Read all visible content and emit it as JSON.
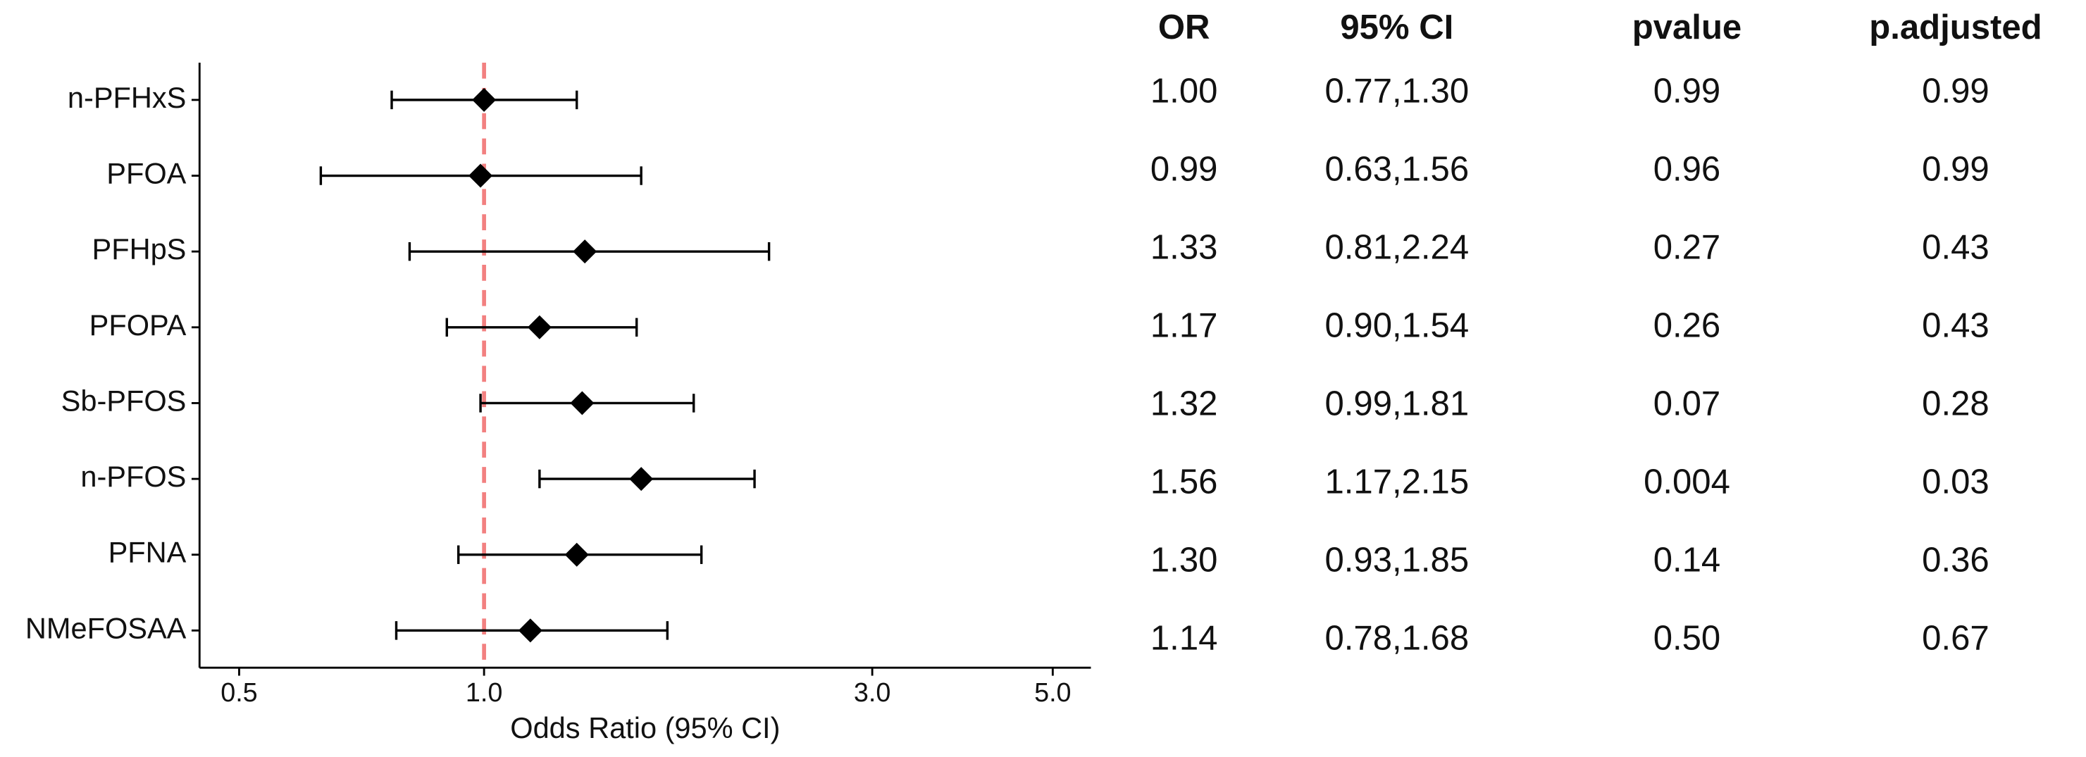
{
  "chart_data": {
    "type": "forest",
    "categories": [
      "n-PFHxS",
      "PFOA",
      "PFHpS",
      "PFOPA",
      "Sb-PFOS",
      "n-PFOS",
      "PFNA",
      "NMeFOSAA"
    ],
    "values": [
      1.0,
      0.99,
      1.33,
      1.17,
      1.32,
      1.56,
      1.3,
      1.14
    ],
    "lower": [
      0.77,
      0.63,
      0.81,
      0.9,
      0.99,
      1.17,
      0.93,
      0.78
    ],
    "upper": [
      1.3,
      1.56,
      2.24,
      1.54,
      1.81,
      2.15,
      1.85,
      1.68
    ],
    "color": "#000000",
    "x_label": "Odds Ratio (95% CI)",
    "xscale": "log",
    "xlim": [
      0.447,
      5.57
    ],
    "xticks": [
      0.5,
      {
        "value": 1,
        "label": "1.0"
      },
      {
        "value": 3,
        "label": "3.0"
      },
      {
        "value": 5,
        "label": "5.0"
      }
    ],
    "reference_line": 1,
    "reference_color": "#f28080"
  },
  "table": {
    "columns": [
      "OR",
      "95% CI",
      "pvalue",
      "p.adjusted"
    ],
    "rows": [
      [
        "1.00",
        "0.77,1.30",
        "0.99",
        "0.99"
      ],
      [
        "0.99",
        "0.63,1.56",
        "0.96",
        "0.99"
      ],
      [
        "1.33",
        "0.81,2.24",
        "0.27",
        "0.43"
      ],
      [
        "1.17",
        "0.90,1.54",
        "0.26",
        "0.43"
      ],
      [
        "1.32",
        "0.99,1.81",
        "0.07",
        "0.28"
      ],
      [
        "1.56",
        "1.17,2.15",
        "0.004",
        "0.03"
      ],
      [
        "1.30",
        "0.93,1.85",
        "0.14",
        "0.36"
      ],
      [
        "1.14",
        "0.78,1.68",
        "0.50",
        "0.67"
      ]
    ]
  }
}
